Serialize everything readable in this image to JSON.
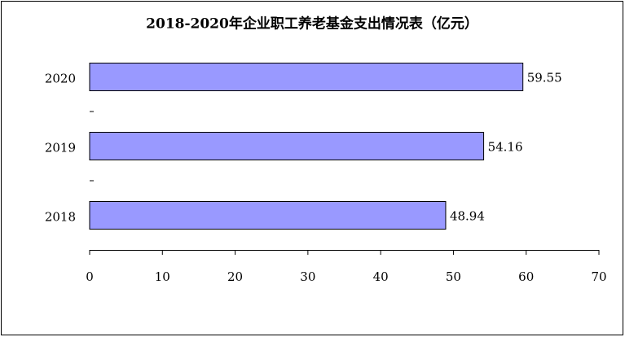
{
  "chart_data": {
    "type": "bar",
    "orientation": "horizontal",
    "title": "2018-2020年企业职工养老基金支出情况表（亿元）",
    "categories": [
      "2018",
      "2019",
      "2020"
    ],
    "values": [
      48.94,
      54.16,
      59.55
    ],
    "color": "#9999ff",
    "xlim": [
      0,
      70
    ],
    "xticks": [
      0,
      10,
      20,
      30,
      40,
      50,
      60,
      70
    ],
    "grid": false
  }
}
